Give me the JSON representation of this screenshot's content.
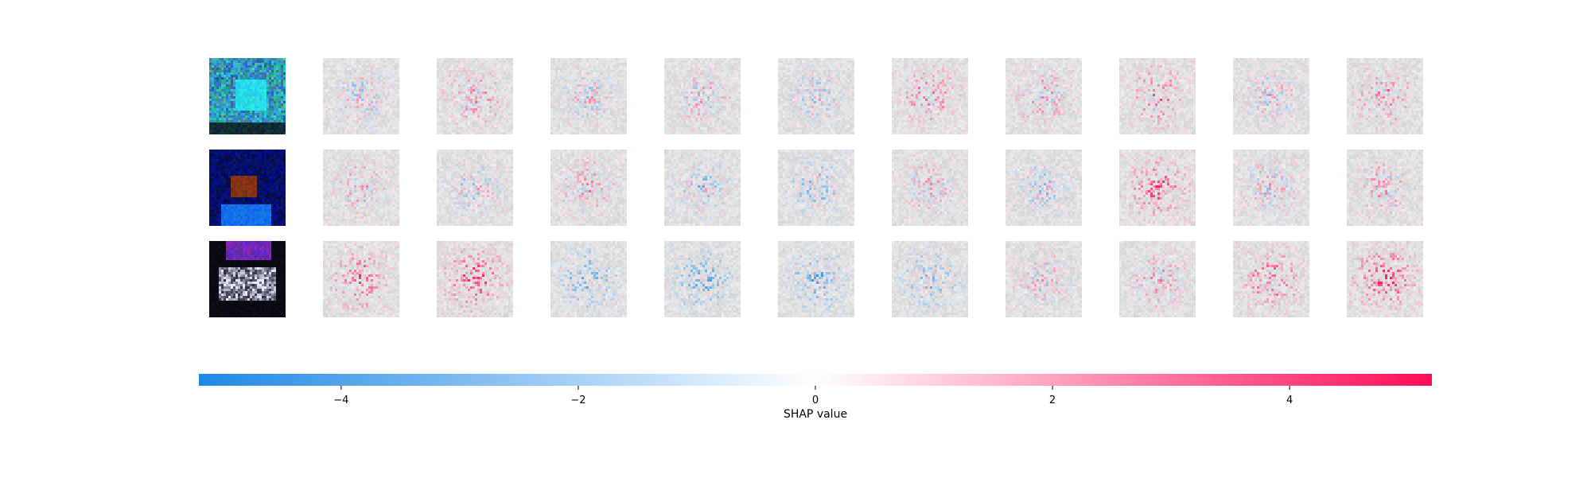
{
  "chart_data": {
    "type": "heatmap",
    "description_of_grid": {
      "rows": 3,
      "columns_per_row": 11,
      "first_column": "original input image",
      "remaining_columns": 10
    },
    "images": [
      {
        "row": 0,
        "input_palette": "cyan-blue object on dark background"
      },
      {
        "row": 1,
        "input_palette": "dark blue background with brown animal"
      },
      {
        "row": 2,
        "input_palette": "dark background with white vehicle"
      }
    ],
    "colorbar": {
      "xlabel": "SHAP value",
      "vmin": -5.2,
      "vmax": 5.2,
      "ticks": [
        -4,
        -2,
        0,
        2,
        4
      ],
      "tick_labels": [
        "−4",
        "−2",
        "0",
        "2",
        "4"
      ],
      "colormap": [
        "#1e88e5",
        "#ffffff",
        "#ff0d57"
      ]
    }
  },
  "colors": {
    "negative": "#1e88e5",
    "positive": "#ff0d57",
    "background_gray": "#dcdcdc"
  }
}
